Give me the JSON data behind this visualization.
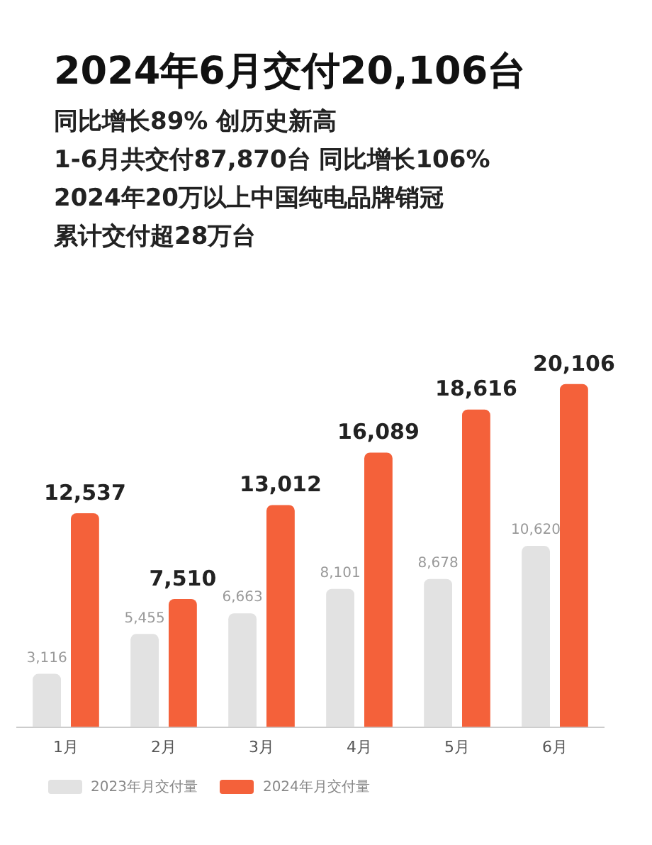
{
  "chart_data": {
    "type": "bar",
    "title": "2024年6月交付20,106台",
    "subtitle": "同比增长89% 创历史新高",
    "annotations": [
      "1-6月共交付87,870台 同比增长106%",
      "2024年20万以上中国纯电品牌销冠",
      "累计交付超28万台"
    ],
    "categories": [
      "1月",
      "2月",
      "3月",
      "4月",
      "5月",
      "6月"
    ],
    "series": [
      {
        "name": "2023年月交付量",
        "color": "#e2e2e2",
        "values": [
          3116,
          5455,
          6663,
          8101,
          8678,
          10620
        ],
        "value_labels": [
          "3,116",
          "5,455",
          "6,663",
          "8,101",
          "8,678",
          "10,620"
        ]
      },
      {
        "name": "2024年月交付量",
        "color": "#f4613a",
        "values": [
          12537,
          7510,
          13012,
          16089,
          18616,
          20106
        ],
        "value_labels": [
          "12,537",
          "7,510",
          "13,012",
          "16,089",
          "18,616",
          "20,106"
        ]
      }
    ],
    "grid": false,
    "legend": "bottom left"
  }
}
